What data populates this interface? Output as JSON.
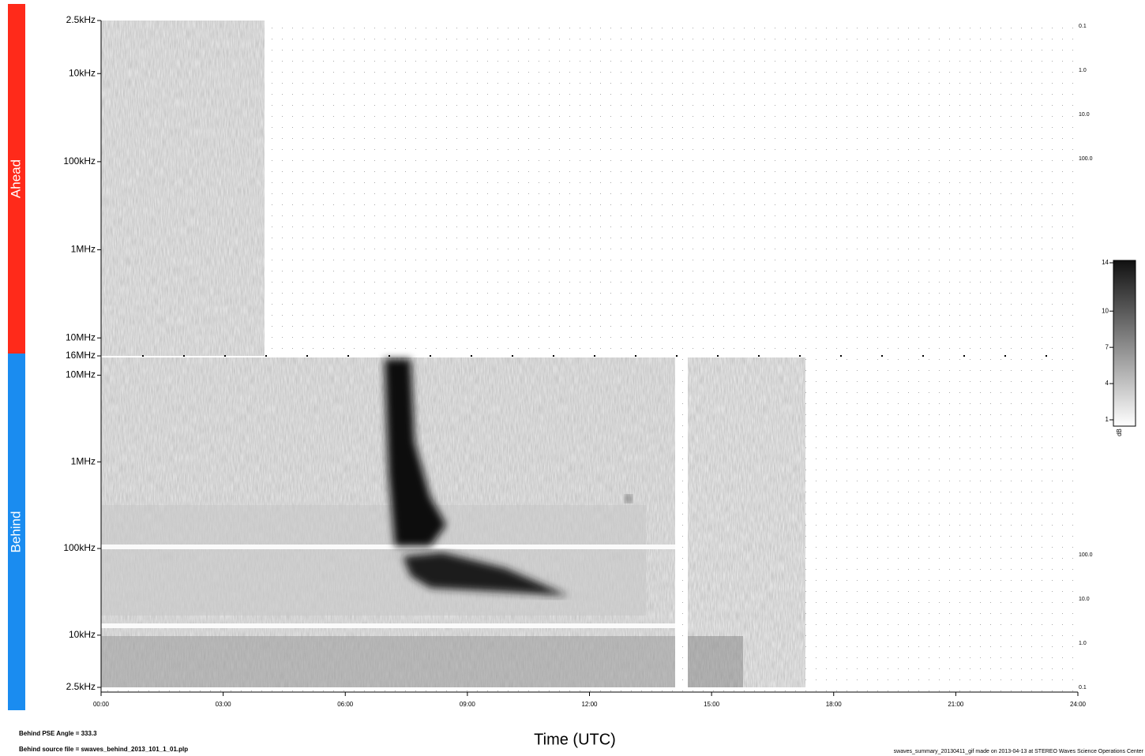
{
  "chart_data": {
    "type": "spectrogram",
    "xlabel": "Time (UTC)",
    "xlim": [
      0,
      24
    ],
    "xticks": [
      {
        "value": 0,
        "label": "00:00"
      },
      {
        "value": 3,
        "label": "03:00"
      },
      {
        "value": 6,
        "label": "06:00"
      },
      {
        "value": 9,
        "label": "09:00"
      },
      {
        "value": 12,
        "label": "12:00"
      },
      {
        "value": 15,
        "label": "15:00"
      },
      {
        "value": 18,
        "label": "18:00"
      },
      {
        "value": 21,
        "label": "21:00"
      },
      {
        "value": 24,
        "label": "24:00"
      }
    ],
    "log_y": true,
    "panels": [
      {
        "label": "Ahead",
        "color": "#ff2a1a",
        "ylim": [
          2500,
          16000000
        ],
        "yticks": [
          {
            "value": 2500,
            "label": "2.5kHz"
          },
          {
            "value": 10000,
            "label": "10kHz"
          },
          {
            "value": 100000,
            "label": "100kHz"
          },
          {
            "value": 1000000,
            "label": "1MHz"
          },
          {
            "value": 10000000,
            "label": "10MHz"
          },
          {
            "value": 16000000,
            "label": "16MHz"
          }
        ],
        "right_labels": [
          "0.1",
          "1.0",
          "10.0",
          "100.0"
        ]
      },
      {
        "label": "Behind",
        "color": "#1a8cf0",
        "ylim": [
          16000000,
          2500
        ],
        "yticks": [
          {
            "value": 10000000,
            "label": "10MHz"
          },
          {
            "value": 1000000,
            "label": "1MHz"
          },
          {
            "value": 100000,
            "label": "100kHz"
          },
          {
            "value": 10000,
            "label": "10kHz"
          },
          {
            "value": 2500,
            "label": "2.5kHz"
          }
        ],
        "right_labels": [
          "100.0",
          "10.0",
          "1.0",
          "0.1"
        ]
      }
    ],
    "colorbar": {
      "lim": [
        1,
        14
      ],
      "ticks": [
        1,
        4,
        7,
        10,
        14
      ],
      "unit": "dB"
    },
    "notes_left": [
      "Behind PSE Angle = 333.3",
      "Behind source file = swaves_behind_2013_101_1_01.plp"
    ],
    "note_right": "swaves_summary_20130411_gif made on 2013-04-13 at STEREO Waves Science Operations Center"
  }
}
